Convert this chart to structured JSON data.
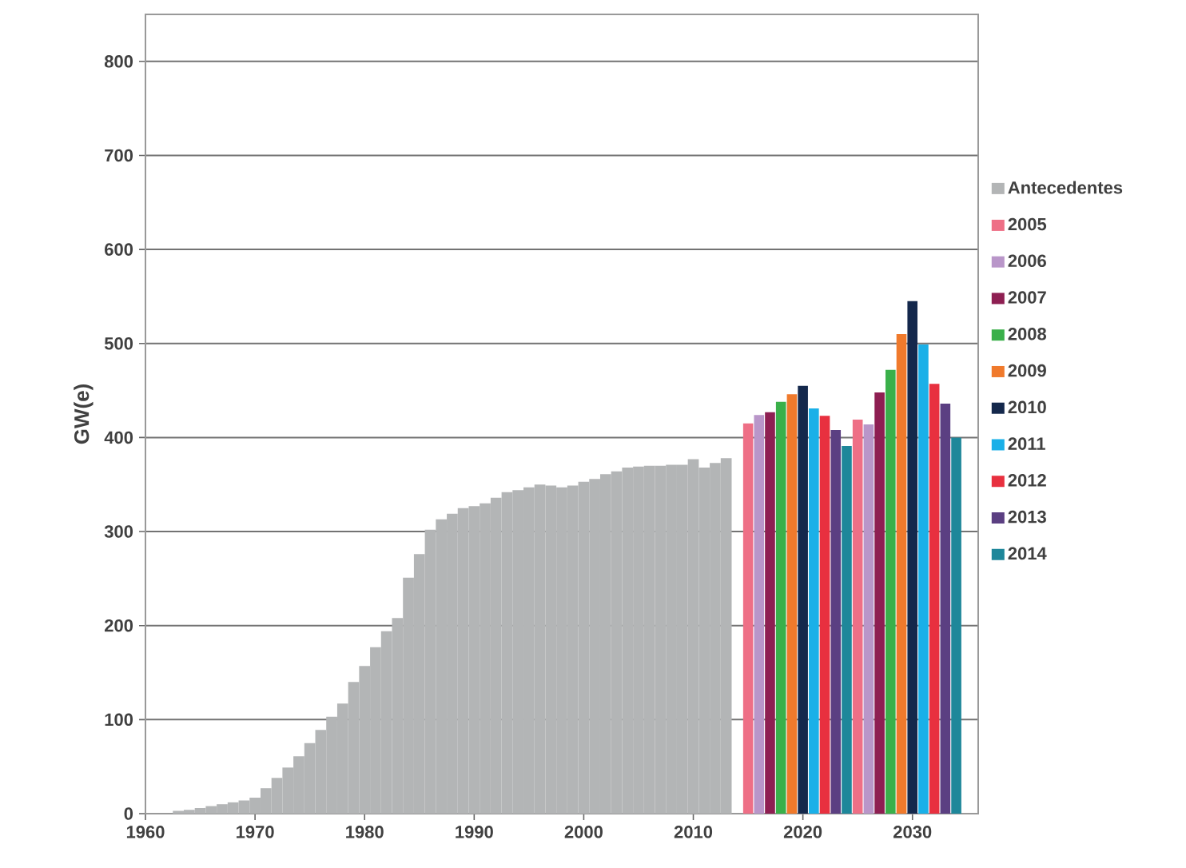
{
  "chart_data": {
    "type": "bar",
    "ylabel": "GW(e)",
    "xlim": [
      1960,
      2036
    ],
    "ylim": [
      0,
      850
    ],
    "xticks": [
      1960,
      1970,
      1980,
      1990,
      2000,
      2010,
      2020,
      2030
    ],
    "yticks": [
      0,
      100,
      200,
      300,
      400,
      500,
      600,
      700,
      800
    ],
    "grid": "y",
    "legend": "right",
    "series": [
      {
        "name": "Antecedentes",
        "color": "#b3b5b6",
        "x": [
          1960,
          1961,
          1962,
          1963,
          1964,
          1965,
          1966,
          1967,
          1968,
          1969,
          1970,
          1971,
          1972,
          1973,
          1974,
          1975,
          1976,
          1977,
          1978,
          1979,
          1980,
          1981,
          1982,
          1983,
          1984,
          1985,
          1986,
          1987,
          1988,
          1989,
          1990,
          1991,
          1992,
          1993,
          1994,
          1995,
          1996,
          1997,
          1998,
          1999,
          2000,
          2001,
          2002,
          2003,
          2004,
          2005,
          2006,
          2007,
          2008,
          2009,
          2010,
          2011,
          2012,
          2013
        ],
        "values": [
          0,
          0,
          0,
          3,
          4,
          6,
          8,
          10,
          12,
          14,
          17,
          27,
          38,
          49,
          61,
          75,
          89,
          103,
          117,
          140,
          157,
          177,
          194,
          208,
          251,
          276,
          302,
          313,
          319,
          325,
          327,
          330,
          336,
          342,
          344,
          347,
          350,
          349,
          347,
          349,
          353,
          356,
          361,
          364,
          368,
          369,
          370,
          370,
          371,
          371,
          377,
          368,
          373,
          378
        ]
      },
      {
        "name": "2005",
        "color": "#ee6f86",
        "x": [
          2020,
          2030
        ],
        "values": [
          415,
          419
        ]
      },
      {
        "name": "2006",
        "color": "#b996c9",
        "x": [
          2020,
          2030
        ],
        "values": [
          424,
          414
        ]
      },
      {
        "name": "2007",
        "color": "#8e1f52",
        "x": [
          2020,
          2030
        ],
        "values": [
          427,
          448
        ]
      },
      {
        "name": "2008",
        "color": "#3ab04a",
        "x": [
          2020,
          2030
        ],
        "values": [
          438,
          472
        ]
      },
      {
        "name": "2009",
        "color": "#f07a2c",
        "x": [
          2020,
          2030
        ],
        "values": [
          446,
          510
        ]
      },
      {
        "name": "2010",
        "color": "#14284c",
        "x": [
          2020,
          2030
        ],
        "values": [
          455,
          545
        ]
      },
      {
        "name": "2011",
        "color": "#1ab0e8",
        "x": [
          2020,
          2030
        ],
        "values": [
          431,
          499
        ]
      },
      {
        "name": "2012",
        "color": "#e8303f",
        "x": [
          2020,
          2030
        ],
        "values": [
          423,
          457
        ]
      },
      {
        "name": "2013",
        "color": "#5b3f82",
        "x": [
          2020,
          2030
        ],
        "values": [
          408,
          436
        ]
      },
      {
        "name": "2014",
        "color": "#1e879a",
        "x": [
          2020,
          2030
        ],
        "values": [
          391,
          400
        ]
      }
    ]
  }
}
